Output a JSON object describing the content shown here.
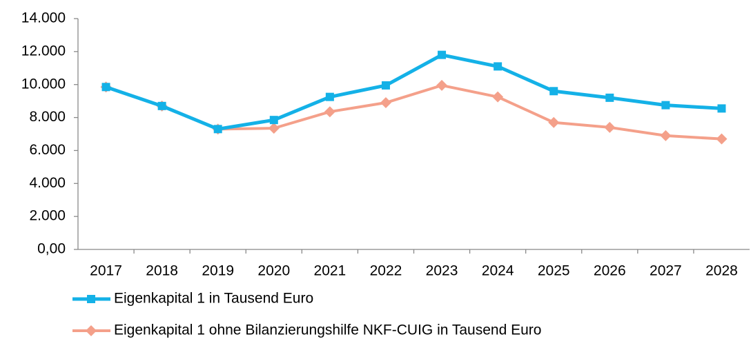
{
  "chart_data": {
    "type": "line",
    "categories": [
      "2017",
      "2018",
      "2019",
      "2020",
      "2021",
      "2022",
      "2023",
      "2024",
      "2025",
      "2026",
      "2027",
      "2028"
    ],
    "series": [
      {
        "name": "Eigenkapital 1 in Tausend Euro",
        "color": "#14b1e7",
        "marker": "square",
        "values": [
          9850,
          8700,
          7300,
          7850,
          9250,
          9950,
          11800,
          11100,
          9600,
          9200,
          8750,
          8550
        ]
      },
      {
        "name": "Eigenkapital 1 ohne Bilanzierungshilfe NKF-CUIG in Tausend Euro",
        "color": "#f4a08a",
        "marker": "diamond",
        "values": [
          9850,
          8700,
          7300,
          7350,
          8350,
          8900,
          9950,
          9250,
          7700,
          7400,
          6900,
          6700
        ]
      }
    ],
    "ylim": [
      0,
      14000
    ],
    "yticks": [
      {
        "value": 0,
        "label": "0,00"
      },
      {
        "value": 2000,
        "label": "2.000"
      },
      {
        "value": 4000,
        "label": "4.000"
      },
      {
        "value": 6000,
        "label": "6.000"
      },
      {
        "value": 8000,
        "label": "8.000"
      },
      {
        "value": 10000,
        "label": "10.000"
      },
      {
        "value": 12000,
        "label": "12.000"
      },
      {
        "value": 14000,
        "label": "14.000"
      }
    ],
    "grid": false,
    "legend": "bottom"
  }
}
